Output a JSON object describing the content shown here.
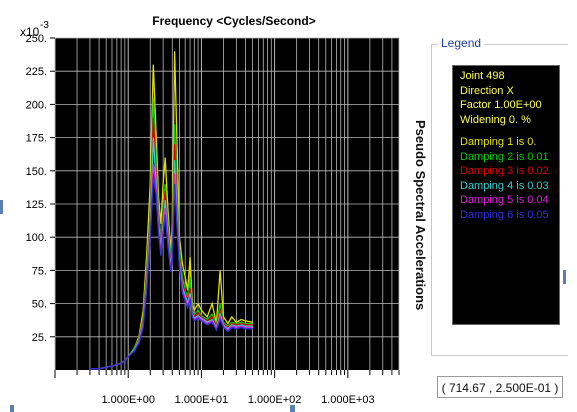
{
  "chart_data": {
    "type": "line",
    "title": "Frequency <Cycles/Second>",
    "xlabel": "",
    "ylabel": "Pseudo Spectral Accelerations",
    "x_scale": "log",
    "xlim": [
      0.1,
      5000
    ],
    "ylim": [
      0,
      0.25
    ],
    "y_multiplier_label": "x10",
    "y_multiplier_exp": "-3",
    "y_ticks": [
      25,
      50,
      75,
      100,
      125,
      150,
      175,
      200,
      225,
      250
    ],
    "y_tick_labels": [
      "25.",
      "50.",
      "75.",
      "100.",
      "125.",
      "150.",
      "175.",
      "200.",
      "225.",
      "250."
    ],
    "x_tick_labels": [
      "1.000E+00",
      "1.000E+01",
      "1.000E+02",
      "1.000E+03"
    ],
    "x_ticks": [
      1,
      10,
      100,
      1000
    ],
    "grid": true,
    "background": "#000000",
    "grid_color": "#b9b9b9",
    "x": [
      0.3,
      0.4,
      0.5,
      0.6,
      0.7,
      0.8,
      0.9,
      1.0,
      1.2,
      1.4,
      1.6,
      1.8,
      2.0,
      2.2,
      2.4,
      2.6,
      2.8,
      3.0,
      3.2,
      3.5,
      3.8,
      4.0,
      4.3,
      4.7,
      5.0,
      5.5,
      6.0,
      6.5,
      7.0,
      7.5,
      8.0,
      9.0,
      10,
      12,
      14,
      16,
      18,
      20,
      23,
      26,
      30,
      35,
      40,
      50
    ],
    "series": [
      {
        "name": "Damping 1 is 0.",
        "color": "#e0e000",
        "values": [
          0.001,
          0.001,
          0.002,
          0.003,
          0.004,
          0.005,
          0.007,
          0.01,
          0.016,
          0.025,
          0.045,
          0.09,
          0.14,
          0.23,
          0.18,
          0.13,
          0.11,
          0.14,
          0.16,
          0.12,
          0.09,
          0.11,
          0.24,
          0.16,
          0.1,
          0.08,
          0.07,
          0.06,
          0.085,
          0.05,
          0.045,
          0.05,
          0.045,
          0.04,
          0.05,
          0.035,
          0.075,
          0.04,
          0.035,
          0.04,
          0.036,
          0.038,
          0.037,
          0.036
        ]
      },
      {
        "name": "Damping 2 is 0.01",
        "color": "#00d000",
        "values": [
          0.001,
          0.001,
          0.002,
          0.003,
          0.004,
          0.005,
          0.007,
          0.01,
          0.016,
          0.024,
          0.04,
          0.08,
          0.12,
          0.205,
          0.16,
          0.12,
          0.1,
          0.12,
          0.14,
          0.11,
          0.085,
          0.1,
          0.185,
          0.13,
          0.09,
          0.07,
          0.06,
          0.055,
          0.07,
          0.045,
          0.042,
          0.045,
          0.041,
          0.038,
          0.042,
          0.034,
          0.05,
          0.036,
          0.033,
          0.036,
          0.035,
          0.036,
          0.035,
          0.035
        ]
      },
      {
        "name": "Damping 3 is 0.02",
        "color": "#e00000",
        "values": [
          0.001,
          0.001,
          0.002,
          0.003,
          0.004,
          0.005,
          0.007,
          0.01,
          0.015,
          0.023,
          0.038,
          0.075,
          0.115,
          0.19,
          0.15,
          0.115,
          0.095,
          0.115,
          0.135,
          0.105,
          0.08,
          0.095,
          0.17,
          0.12,
          0.085,
          0.065,
          0.058,
          0.052,
          0.062,
          0.043,
          0.04,
          0.043,
          0.04,
          0.037,
          0.04,
          0.033,
          0.045,
          0.035,
          0.032,
          0.035,
          0.034,
          0.035,
          0.034,
          0.034
        ]
      },
      {
        "name": "Damping 4 is 0.03",
        "color": "#30d0d0",
        "values": [
          0.001,
          0.001,
          0.002,
          0.003,
          0.004,
          0.005,
          0.007,
          0.01,
          0.015,
          0.022,
          0.036,
          0.07,
          0.108,
          0.175,
          0.143,
          0.11,
          0.092,
          0.11,
          0.128,
          0.1,
          0.078,
          0.09,
          0.158,
          0.114,
          0.082,
          0.062,
          0.056,
          0.05,
          0.058,
          0.042,
          0.039,
          0.041,
          0.039,
          0.036,
          0.038,
          0.032,
          0.042,
          0.034,
          0.031,
          0.034,
          0.033,
          0.034,
          0.033,
          0.033
        ]
      },
      {
        "name": "Damping 5 is 0.04",
        "color": "#e020e0",
        "values": [
          0.001,
          0.001,
          0.002,
          0.003,
          0.004,
          0.005,
          0.007,
          0.01,
          0.014,
          0.021,
          0.034,
          0.066,
          0.102,
          0.155,
          0.138,
          0.106,
          0.089,
          0.106,
          0.122,
          0.096,
          0.076,
          0.087,
          0.148,
          0.108,
          0.079,
          0.06,
          0.054,
          0.048,
          0.055,
          0.041,
          0.038,
          0.04,
          0.038,
          0.035,
          0.037,
          0.031,
          0.04,
          0.033,
          0.03,
          0.033,
          0.032,
          0.033,
          0.032,
          0.032
        ]
      },
      {
        "name": "Damping 6 is 0.05",
        "color": "#3030e0",
        "values": [
          0.001,
          0.001,
          0.002,
          0.003,
          0.004,
          0.005,
          0.007,
          0.01,
          0.014,
          0.02,
          0.032,
          0.062,
          0.098,
          0.145,
          0.133,
          0.102,
          0.086,
          0.102,
          0.117,
          0.093,
          0.074,
          0.084,
          0.14,
          0.104,
          0.077,
          0.058,
          0.052,
          0.047,
          0.053,
          0.04,
          0.037,
          0.039,
          0.037,
          0.034,
          0.036,
          0.03,
          0.038,
          0.032,
          0.029,
          0.032,
          0.031,
          0.032,
          0.031,
          0.031
        ]
      }
    ]
  },
  "legend": {
    "caption": "Legend",
    "info": [
      {
        "text": "Joint 498",
        "color": "#ffff50"
      },
      {
        "text": "Direction X",
        "color": "#ffff50"
      },
      {
        "text": "Factor 1.00E+00",
        "color": "#ffff50"
      },
      {
        "text": "Widening 0. %",
        "color": "#ffff50"
      }
    ]
  },
  "coord_readout": "( 714.67 , 2.500E-01 )"
}
